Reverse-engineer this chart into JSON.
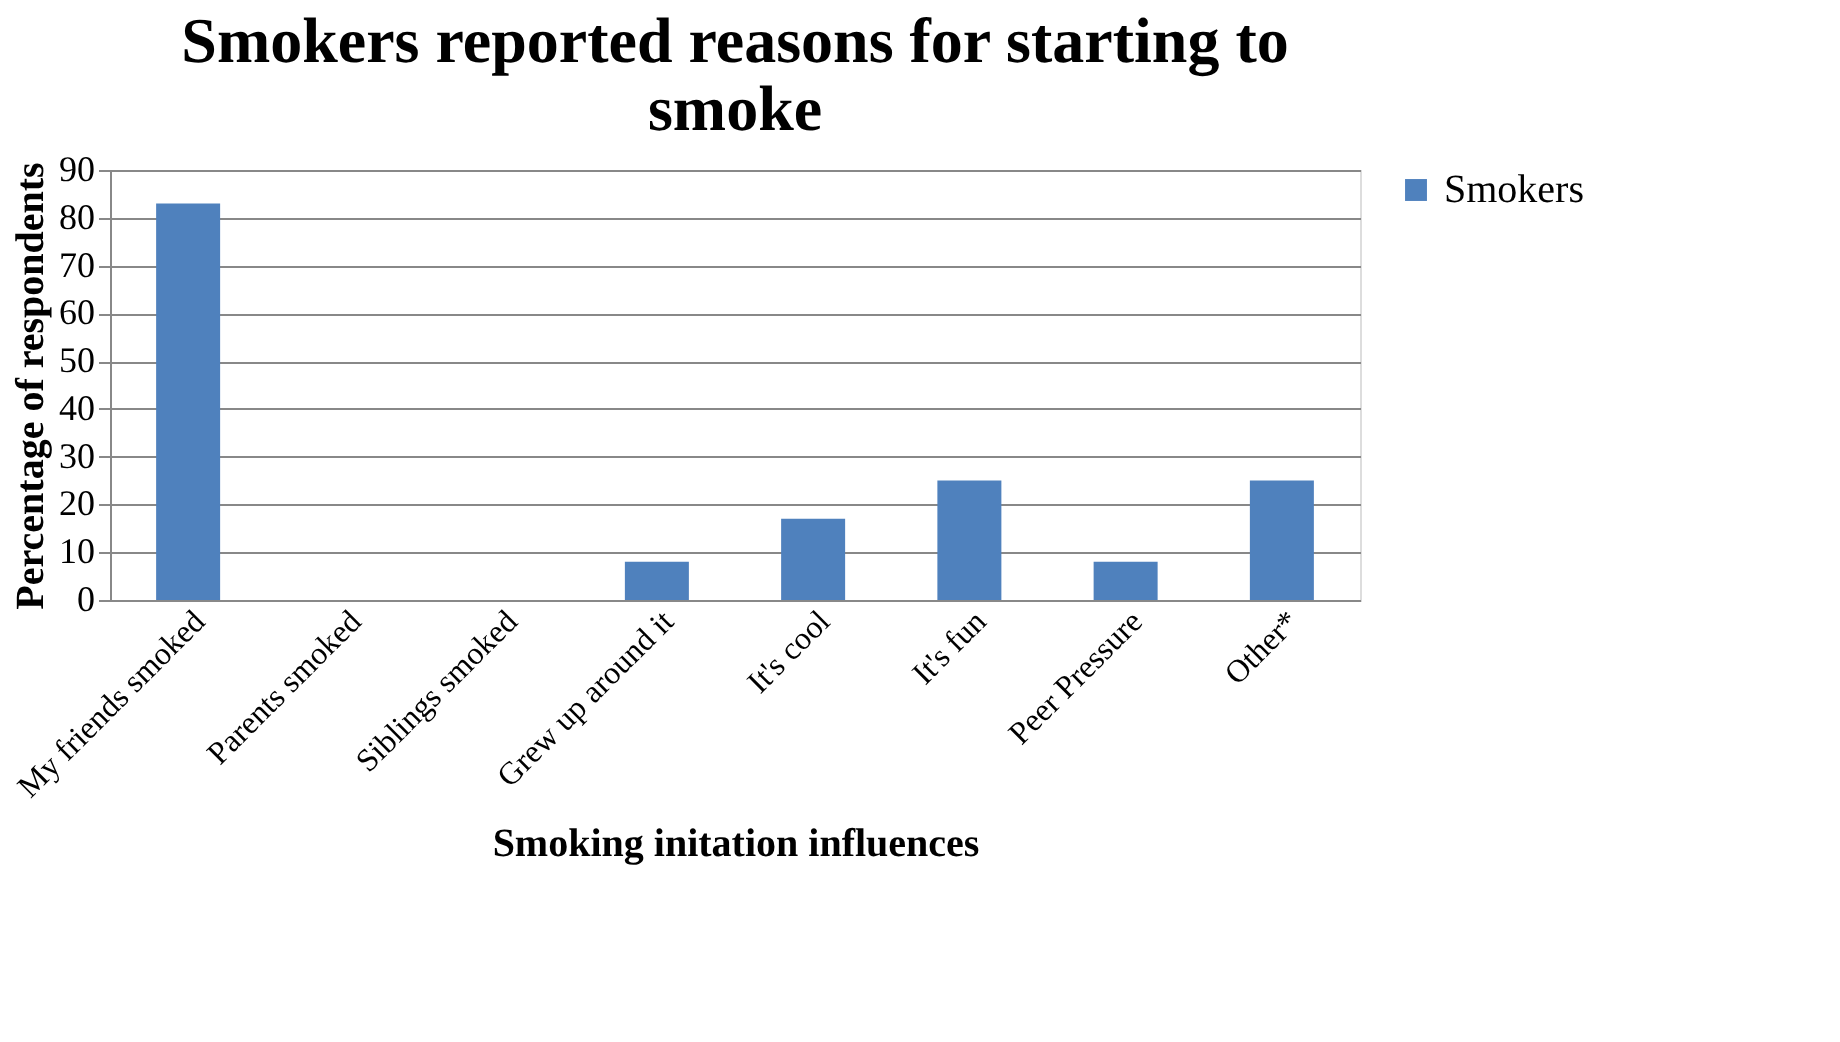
{
  "chart_data": {
    "type": "bar",
    "title": "Smokers reported reasons for starting to smoke",
    "xlabel": "Smoking initation influences",
    "ylabel": "Percentage of respondents",
    "categories": [
      "My friends smoked",
      "Parents smoked",
      "Siblings smoked",
      "Grew up around it",
      "It's cool",
      "It's fun",
      "Peer Pressure",
      "Other*"
    ],
    "series": [
      {
        "name": "Smokers",
        "color": "#4f81bd",
        "values": [
          83,
          0,
          0,
          8,
          17,
          25,
          8,
          25
        ]
      }
    ],
    "ylim": [
      0,
      90
    ],
    "yticks": [
      0,
      10,
      20,
      30,
      40,
      50,
      60,
      70,
      80,
      90
    ],
    "grid": "y",
    "legend": "right"
  }
}
